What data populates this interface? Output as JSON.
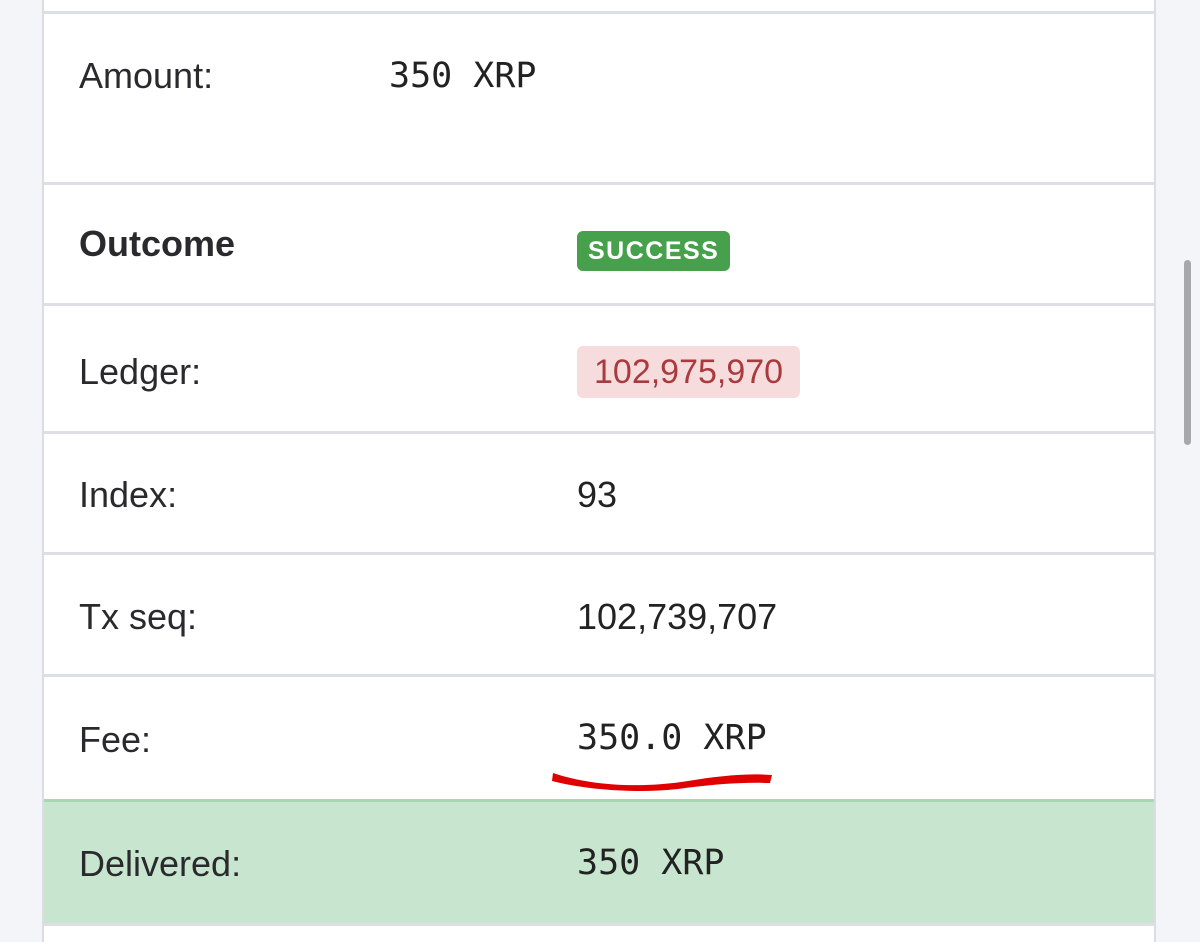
{
  "rows": {
    "amount": {
      "label": "Amount:",
      "value": "350 XRP"
    },
    "outcome": {
      "label": "Outcome",
      "value": "SUCCESS"
    },
    "ledger": {
      "label": "Ledger:",
      "value": "102,975,970"
    },
    "index": {
      "label": "Index:",
      "value": "93"
    },
    "tx_seq": {
      "label": "Tx seq:",
      "value": "102,739,707"
    },
    "fee": {
      "label": "Fee:",
      "value": "350.0 XRP"
    },
    "delivered": {
      "label": "Delivered:",
      "value": "350 XRP"
    }
  },
  "colors": {
    "success_badge": "#47a04c",
    "ledger_badge_bg": "#f6dcdd",
    "ledger_badge_text": "#a93a3d",
    "delivered_row_bg": "#c8e6cf",
    "annotation_underline": "#e00000"
  },
  "annotation": {
    "type": "hand-drawn underline",
    "target": "fee"
  }
}
